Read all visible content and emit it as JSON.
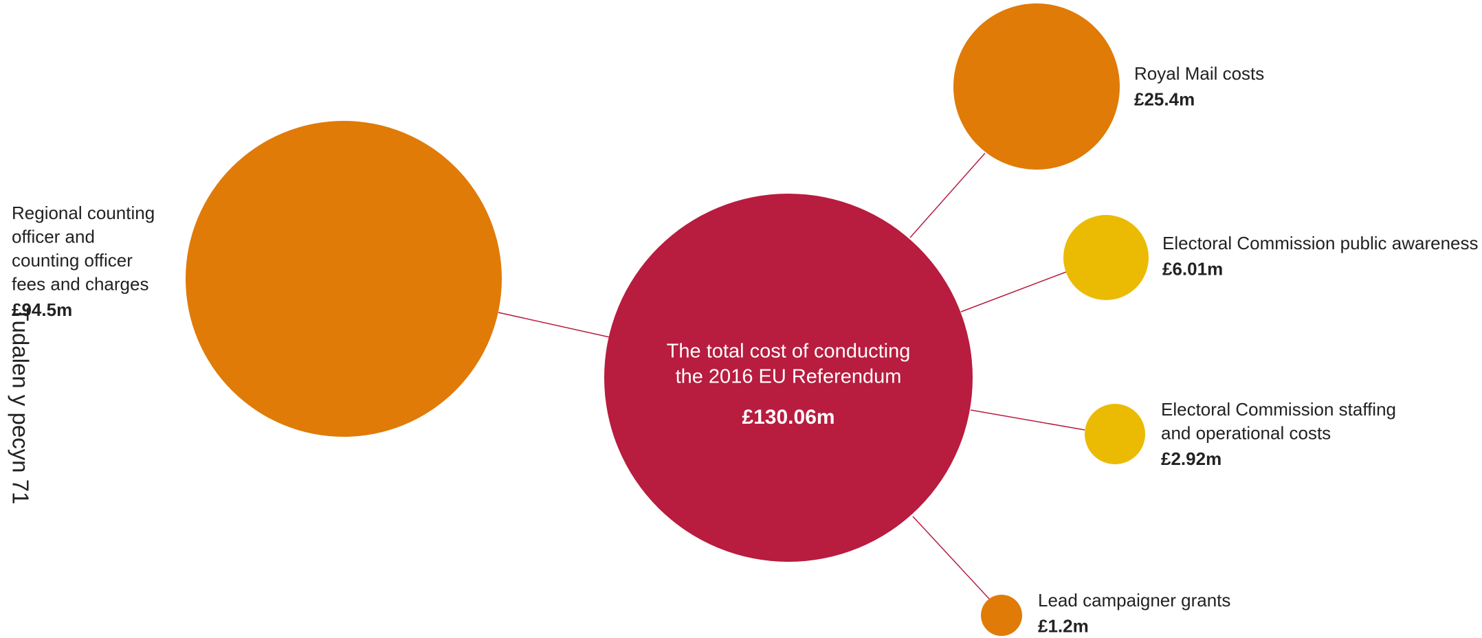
{
  "center": {
    "title_lines": [
      "The total cost of conducting",
      "the 2016 EU Referendum"
    ],
    "value": "£130.06m"
  },
  "nodes": [
    {
      "label_lines": [
        "Regional counting",
        "officer and",
        "counting officer",
        "fees and charges"
      ],
      "value": "£94.5m"
    },
    {
      "label_lines": [
        "Royal Mail costs"
      ],
      "value": "£25.4m"
    },
    {
      "label_lines": [
        "Electoral Commission public awareness"
      ],
      "value": "£6.01m"
    },
    {
      "label_lines": [
        "Electoral Commission staffing",
        "and operational costs"
      ],
      "value": "£2.92m"
    },
    {
      "label_lines": [
        "Lead campaigner grants"
      ],
      "value": "£1.2m"
    }
  ],
  "page_label": "Tudalen y pecyn 71"
}
